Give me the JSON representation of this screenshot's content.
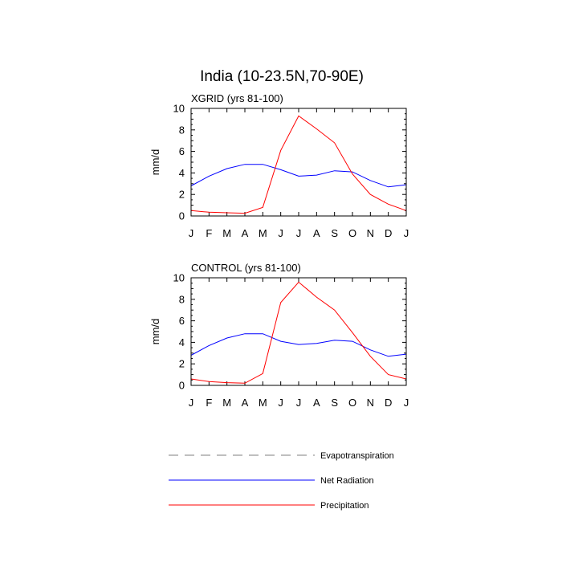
{
  "figure_title": "India (10-23.5N,70-90E)",
  "legend": [
    {
      "label": "Evapotranspiration",
      "color": "#7f7f7f",
      "dash": "dashed"
    },
    {
      "label": "Net Radiation",
      "color": "#0000ff",
      "dash": "solid"
    },
    {
      "label": "Precipitation",
      "color": "#ff0000",
      "dash": "solid"
    }
  ],
  "chart_data": [
    {
      "type": "line",
      "title": "XGRID (yrs 81-100)",
      "ylabel": "mm/d",
      "xlabel": "",
      "ylim": [
        0,
        10
      ],
      "yticks": [
        0,
        2,
        4,
        6,
        8,
        10
      ],
      "categories": [
        "J",
        "F",
        "M",
        "A",
        "M",
        "J",
        "J",
        "A",
        "S",
        "O",
        "N",
        "D",
        "J"
      ],
      "series": [
        {
          "name": "Net Radiation",
          "color": "#0000ff",
          "values": [
            2.8,
            3.7,
            4.4,
            4.8,
            4.8,
            4.3,
            3.7,
            3.8,
            4.2,
            4.1,
            3.3,
            2.7,
            2.9
          ]
        },
        {
          "name": "Precipitation",
          "color": "#ff0000",
          "values": [
            0.5,
            0.35,
            0.3,
            0.25,
            0.8,
            6.1,
            9.3,
            8.1,
            6.8,
            3.9,
            2.0,
            1.1,
            0.5
          ]
        }
      ]
    },
    {
      "type": "line",
      "title": "CONTROL (yrs 81-100)",
      "ylabel": "mm/d",
      "xlabel": "",
      "ylim": [
        0,
        10
      ],
      "yticks": [
        0,
        2,
        4,
        6,
        8,
        10
      ],
      "categories": [
        "J",
        "F",
        "M",
        "A",
        "M",
        "J",
        "J",
        "A",
        "S",
        "O",
        "N",
        "D",
        "J"
      ],
      "series": [
        {
          "name": "Net Radiation",
          "color": "#0000ff",
          "values": [
            2.8,
            3.7,
            4.4,
            4.8,
            4.8,
            4.1,
            3.8,
            3.9,
            4.2,
            4.1,
            3.3,
            2.7,
            2.9
          ]
        },
        {
          "name": "Precipitation",
          "color": "#ff0000",
          "values": [
            0.6,
            0.35,
            0.25,
            0.2,
            1.1,
            7.7,
            9.6,
            8.2,
            7.0,
            4.9,
            2.7,
            1.0,
            0.6
          ]
        }
      ]
    }
  ]
}
